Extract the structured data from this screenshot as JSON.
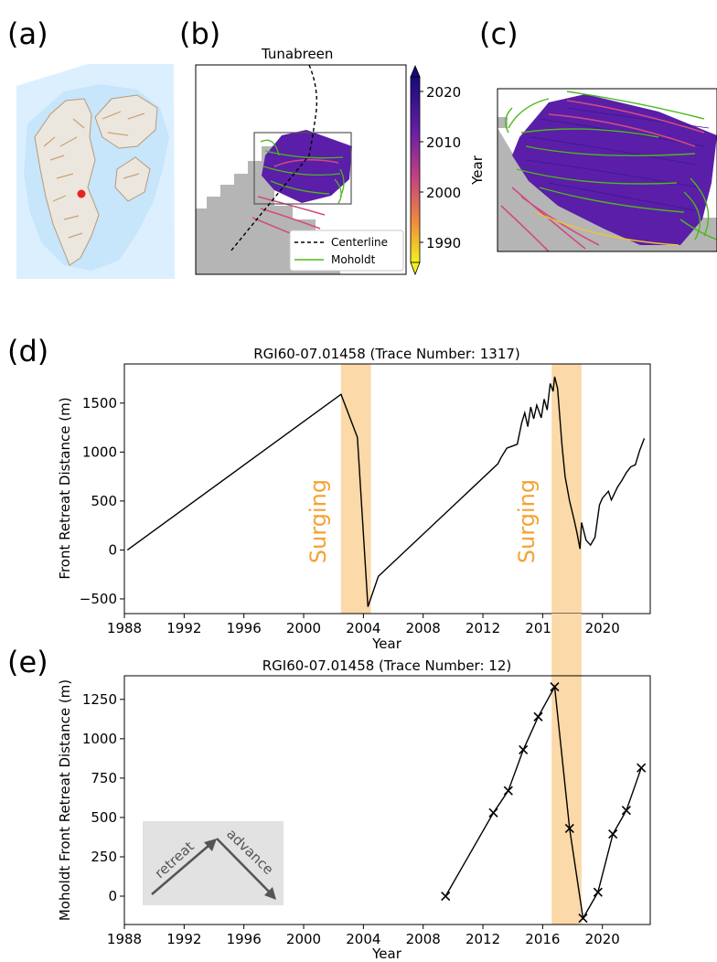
{
  "panels": {
    "a": {
      "label": "(a)"
    },
    "b": {
      "label": "(b)",
      "glacier_label": "Tunabreen",
      "legend": [
        "Centerline",
        "Moholdt"
      ],
      "colorbar": {
        "label": "Year",
        "ticks": [
          "2020",
          "2010",
          "2000",
          "1990"
        ]
      }
    },
    "c": {
      "label": "(c)"
    },
    "d": {
      "label": "(d)"
    },
    "e": {
      "label": "(e)"
    }
  },
  "surge_label": "Surging",
  "inset": {
    "retreat": "retreat",
    "advance": "advance"
  },
  "colors": {
    "surge_band": "#fbd9a8",
    "surge_text": "#f5a233",
    "line": "#000000",
    "map_gray": "#b5b5b5",
    "front_purple": "#5a1ea8",
    "moholdt_green": "#4cb81c",
    "old_front_pink": "#d24a7e",
    "old_front_yellow": "#f1c232",
    "centerline": "#000000"
  },
  "chart_data": [
    {
      "type": "line",
      "title": "RGI60-07.01458 (Trace Number: 1317)",
      "xlabel": "Year",
      "ylabel": "Front Retreat Distance (m)",
      "xlim": [
        1988,
        2023.2
      ],
      "ylim": [
        -650,
        1900
      ],
      "xticks": [
        1988,
        1992,
        1996,
        2000,
        2004,
        2008,
        2012,
        2016,
        2020
      ],
      "yticks": [
        -500,
        0,
        500,
        1000,
        1500
      ],
      "surge_periods": [
        [
          2002.5,
          2004.5
        ],
        [
          2016.6,
          2018.6
        ]
      ],
      "series": [
        {
          "points": [
            [
              1988.2,
              0
            ],
            [
              2002.5,
              1590
            ],
            [
              2003.6,
              1150
            ],
            [
              2004.3,
              -580
            ],
            [
              2005.0,
              -270
            ],
            [
              2013.0,
              880
            ],
            [
              2013.2,
              940
            ],
            [
              2013.6,
              1040
            ],
            [
              2014.3,
              1080
            ],
            [
              2014.6,
              1300
            ],
            [
              2014.8,
              1400
            ],
            [
              2015.0,
              1260
            ],
            [
              2015.2,
              1460
            ],
            [
              2015.4,
              1340
            ],
            [
              2015.6,
              1480
            ],
            [
              2015.9,
              1350
            ],
            [
              2016.1,
              1540
            ],
            [
              2016.3,
              1430
            ],
            [
              2016.5,
              1700
            ],
            [
              2016.7,
              1620
            ],
            [
              2016.8,
              1770
            ],
            [
              2017.0,
              1650
            ],
            [
              2017.3,
              1060
            ],
            [
              2017.5,
              750
            ],
            [
              2017.8,
              500
            ],
            [
              2018.1,
              310
            ],
            [
              2018.3,
              170
            ],
            [
              2018.5,
              10
            ],
            [
              2018.6,
              280
            ],
            [
              2018.9,
              100
            ],
            [
              2019.2,
              50
            ],
            [
              2019.5,
              130
            ],
            [
              2019.8,
              460
            ],
            [
              2020.0,
              530
            ],
            [
              2020.4,
              600
            ],
            [
              2020.6,
              510
            ],
            [
              2021.0,
              640
            ],
            [
              2021.3,
              710
            ],
            [
              2021.6,
              790
            ],
            [
              2021.9,
              850
            ],
            [
              2022.2,
              870
            ],
            [
              2022.5,
              1020
            ],
            [
              2022.8,
              1140
            ]
          ]
        }
      ]
    },
    {
      "type": "line",
      "title": "RGI60-07.01458 (Trace Number: 12)",
      "xlabel": "Year",
      "ylabel": "Moholdt Front Retreat Distance (m)",
      "xlim": [
        1988,
        2023.2
      ],
      "ylim": [
        -180,
        1400
      ],
      "xticks": [
        1988,
        1992,
        1996,
        2000,
        2004,
        2008,
        2012,
        2016,
        2020
      ],
      "yticks": [
        0,
        250,
        500,
        750,
        1000,
        1250
      ],
      "surge_periods": [
        [
          2016.6,
          2018.6
        ]
      ],
      "series": [
        {
          "marker": "x",
          "points": [
            [
              2009.5,
              0
            ],
            [
              2012.7,
              530
            ],
            [
              2013.7,
              670
            ],
            [
              2014.7,
              930
            ],
            [
              2015.7,
              1140
            ],
            [
              2016.8,
              1330
            ],
            [
              2017.8,
              430
            ],
            [
              2018.7,
              -140
            ],
            [
              2019.7,
              25
            ],
            [
              2020.7,
              395
            ],
            [
              2021.6,
              545
            ],
            [
              2022.6,
              815
            ]
          ]
        }
      ]
    }
  ]
}
